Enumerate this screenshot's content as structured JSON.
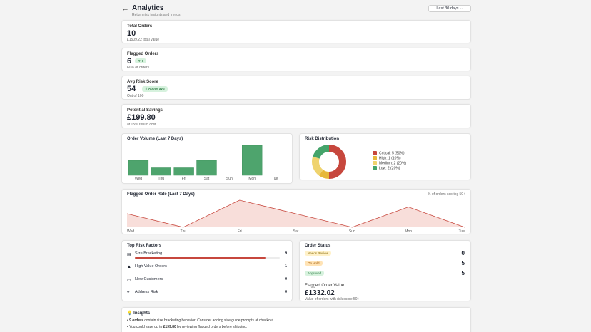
{
  "header": {
    "title": "Analytics",
    "subtitle": "Return risk insights and trends",
    "range": "Last 30 days"
  },
  "cards": {
    "total_orders": {
      "label": "Total Orders",
      "value": "10",
      "sub": "£1509.22 total value"
    },
    "flagged_orders": {
      "label": "Flagged Orders",
      "value": "6",
      "badge": "▼ 6",
      "sub": "60% of orders"
    },
    "avg_risk_score": {
      "label": "Avg Risk Score",
      "value": "54",
      "badge": "⇩ Above avg",
      "sub": "Out of 100"
    },
    "potential_savings": {
      "label": "Potential Savings",
      "value": "£199.80",
      "sub": "at 15% return cost"
    }
  },
  "order_volume": {
    "title": "Order Volume (Last 7 Days)",
    "chart_data": {
      "type": "bar",
      "categories": [
        "Wed",
        "Thu",
        "Fri",
        "Sat",
        "Sun",
        "Mon",
        "Tue"
      ],
      "values": [
        2,
        1,
        1,
        2,
        0,
        4,
        0
      ],
      "ylim": [
        0,
        4
      ]
    }
  },
  "risk_distribution": {
    "title": "Risk Distribution",
    "chart_data": {
      "type": "pie",
      "categories": [
        "Critical",
        "High",
        "Medium",
        "Low"
      ],
      "values": [
        5,
        1,
        2,
        2
      ],
      "labels": [
        "Critical: 5 (50%)",
        "High: 1 (10%)",
        "Medium: 2 (20%)",
        "Low: 2 (20%)"
      ],
      "colors": [
        "#c7473d",
        "#e7b83a",
        "#efd36e",
        "#44a46a"
      ]
    }
  },
  "flagged_rate": {
    "title": "Flagged Order Rate (Last 7 Days)",
    "note": "% of orders scoring 50+",
    "chart_data": {
      "type": "area",
      "categories": [
        "Wed",
        "Thu",
        "Fri",
        "Sat",
        "Sun",
        "Mon",
        "Tue"
      ],
      "values": [
        50,
        0,
        100,
        50,
        0,
        75,
        0
      ],
      "ylim": [
        0,
        100
      ]
    }
  },
  "top_risk_factors": {
    "title": "Top Risk Factors",
    "items": [
      {
        "icon": "bracket-icon",
        "glyph": "▤",
        "label": "Size Bracketing",
        "count": "9",
        "level": 0.9
      },
      {
        "icon": "value-icon",
        "glyph": "▲",
        "label": "High Value Orders",
        "count": "1",
        "level": 0.1
      },
      {
        "icon": "new-customer-icon",
        "glyph": "▭",
        "label": "New Customers",
        "count": "0",
        "level": 0
      },
      {
        "icon": "address-icon",
        "glyph": "⌖",
        "label": "Address Risk",
        "count": "0",
        "level": 0
      }
    ]
  },
  "order_status": {
    "title": "Order Status",
    "items": [
      {
        "label": "Needs Review",
        "count": "0",
        "bg": "#fff1c8",
        "color": "#8c6c09"
      },
      {
        "label": "On Hold",
        "count": "5",
        "bg": "#ffe3b5",
        "color": "#a05800"
      },
      {
        "label": "Approved",
        "count": "5",
        "bg": "#d7f2de",
        "color": "#2e7d45"
      }
    ],
    "flagged_value_label": "Flagged Order Value",
    "flagged_value": "£1332.02",
    "flagged_value_sub": "Value of orders with risk score 50+"
  },
  "insights": {
    "title": "Insights",
    "lines": [
      {
        "bold": "9 orders",
        "text": " contain size bracketing behavior. Consider adding size guide prompts at checkout."
      },
      {
        "bold": "",
        "text": "You could save up to "
      },
      {
        "bold": "£199.80",
        "text": " by reviewing flagged orders before shipping."
      }
    ]
  }
}
